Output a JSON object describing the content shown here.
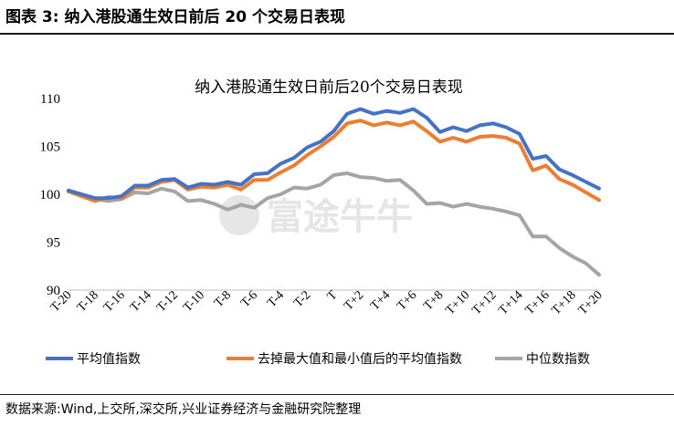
{
  "figure": {
    "title": "图表 3:  纳入港股通生效日前后 20 个交易日表现",
    "source": "数据来源:Wind,上交所,深交所,兴业证券经济与金融研究院整理"
  },
  "watermark": {
    "text": "富途牛牛"
  },
  "colors": {
    "avg": "#4472C4",
    "trimmed": "#ED7D31",
    "median": "#A5A5A5",
    "axis": "#BFBFBF"
  },
  "chart_data": {
    "type": "line",
    "title": "纳入港股通生效日前后20个交易日表现",
    "xlabel": "",
    "ylabel": "",
    "ylim": [
      90,
      110
    ],
    "yticks": [
      90,
      95,
      100,
      105,
      110
    ],
    "grid": false,
    "legend": "bottom",
    "categories": [
      "T-20",
      "T-19",
      "T-18",
      "T-17",
      "T-16",
      "T-15",
      "T-14",
      "T-13",
      "T-12",
      "T-11",
      "T-10",
      "T-9",
      "T-8",
      "T-7",
      "T-6",
      "T-5",
      "T-4",
      "T-3",
      "T-2",
      "T-1",
      "T",
      "T+1",
      "T+2",
      "T+3",
      "T+4",
      "T+5",
      "T+6",
      "T+7",
      "T+8",
      "T+9",
      "T+10",
      "T+11",
      "T+12",
      "T+13",
      "T+14",
      "T+15",
      "T+16",
      "T+17",
      "T+18",
      "T+19",
      "T+20"
    ],
    "xtick_labels": [
      "T-20",
      "T-18",
      "T-16",
      "T-14",
      "T-12",
      "T-10",
      "T-8",
      "T-6",
      "T-4",
      "T-2",
      "T",
      "T+2",
      "T+4",
      "T+6",
      "T+8",
      "T+10",
      "T+12",
      "T+14",
      "T+16",
      "T+18",
      "T+20"
    ],
    "series": [
      {
        "name": "平均值指数",
        "color_key": "avg",
        "values": [
          100.4,
          100.0,
          99.6,
          99.6,
          99.8,
          100.9,
          100.9,
          101.5,
          101.6,
          100.7,
          101.1,
          101.0,
          101.3,
          101.0,
          102.1,
          102.2,
          103.2,
          103.8,
          104.9,
          105.5,
          106.6,
          108.4,
          108.9,
          108.4,
          108.7,
          108.5,
          108.9,
          108.0,
          106.5,
          107.0,
          106.6,
          107.2,
          107.4,
          107.0,
          106.3,
          103.7,
          104.0,
          102.6,
          102.0,
          101.3,
          100.6
        ]
      },
      {
        "name": "去掉最大值和最小值后的平均值指数",
        "color_key": "trimmed",
        "values": [
          100.3,
          99.8,
          99.3,
          99.7,
          99.6,
          100.7,
          100.7,
          101.3,
          101.5,
          100.5,
          100.8,
          100.7,
          101.0,
          100.5,
          101.5,
          101.5,
          102.3,
          103.0,
          104.1,
          105.0,
          106.0,
          107.4,
          107.7,
          107.2,
          107.5,
          107.2,
          107.6,
          106.6,
          105.5,
          105.9,
          105.5,
          106.0,
          106.1,
          105.9,
          105.3,
          102.5,
          103.0,
          101.6,
          101.0,
          100.2,
          99.4
        ]
      },
      {
        "name": "中位数指数",
        "color_key": "median",
        "values": [
          100.3,
          100.0,
          99.5,
          99.3,
          99.5,
          100.2,
          100.1,
          100.6,
          100.3,
          99.3,
          99.4,
          99.0,
          98.4,
          98.9,
          98.6,
          99.6,
          100.0,
          100.7,
          100.6,
          101.0,
          102.0,
          102.2,
          101.8,
          101.7,
          101.4,
          101.5,
          100.4,
          99.0,
          99.1,
          98.7,
          99.0,
          98.7,
          98.5,
          98.2,
          97.8,
          95.6,
          95.6,
          94.4,
          93.5,
          92.8,
          91.6
        ]
      }
    ]
  }
}
